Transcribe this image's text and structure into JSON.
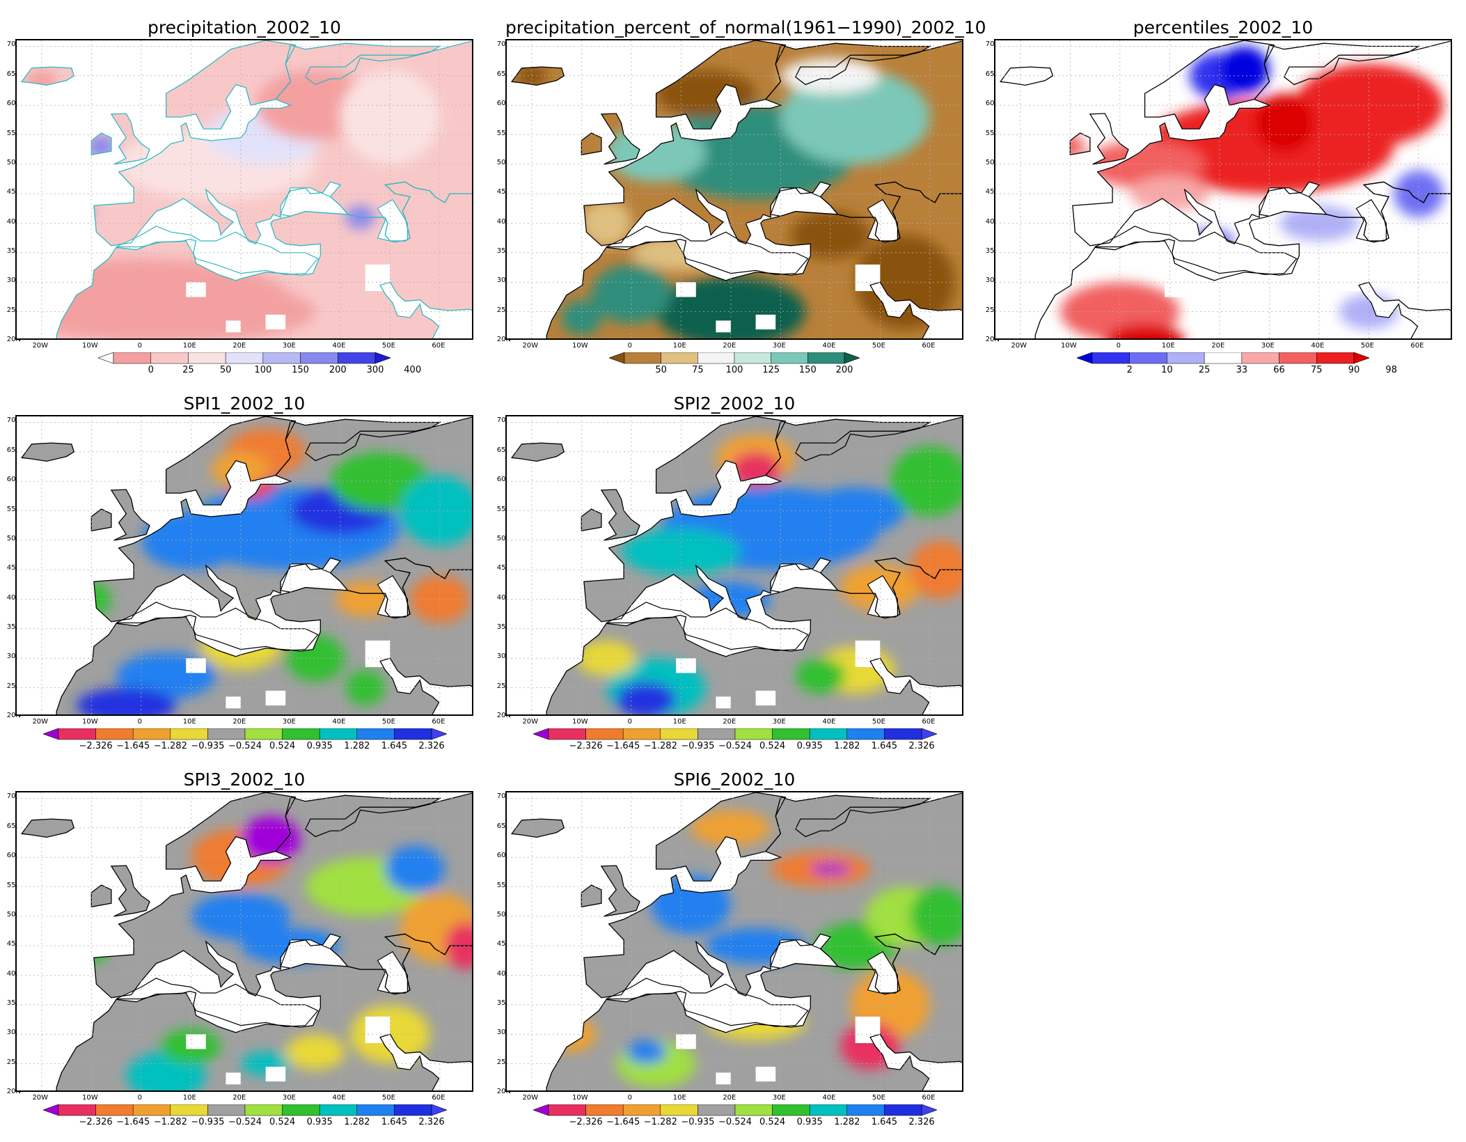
{
  "axes": {
    "lat_labels": [
      "70N",
      "65N",
      "60N",
      "55N",
      "50N",
      "45N",
      "40N",
      "35N",
      "30N",
      "25N",
      "20N"
    ],
    "lon_labels": [
      "20W",
      "10W",
      "0",
      "10E",
      "20E",
      "30E",
      "40E",
      "50E",
      "60E"
    ]
  },
  "panels": [
    {
      "id": "precip",
      "title": "precipitation_2002_10",
      "style": "precip",
      "colorbar": {
        "ticks": [
          "0",
          "25",
          "50",
          "100",
          "150",
          "200",
          "300",
          "400"
        ],
        "colors": [
          "#ffffff",
          "#f4a0a0",
          "#f8c8c8",
          "#fbe2e2",
          "#e2e2fb",
          "#b8b8f4",
          "#8888ee",
          "#4444e6",
          "#1c1cd0"
        ]
      }
    },
    {
      "id": "pct_normal",
      "title": "precipitation_percent_of_normal(1961−1990)_2002_10",
      "style": "pct",
      "colorbar": {
        "ticks": [
          "50",
          "75",
          "100",
          "125",
          "150",
          "200"
        ],
        "colors": [
          "#8a5210",
          "#b9803a",
          "#dfc080",
          "#f4f4f4",
          "#c6e8de",
          "#7cc8b8",
          "#2e8e7c",
          "#11604e"
        ]
      }
    },
    {
      "id": "percentiles",
      "title": "percentiles_2002_10",
      "style": "pctl",
      "colorbar": {
        "ticks": [
          "2",
          "10",
          "25",
          "33",
          "66",
          "75",
          "90",
          "98"
        ],
        "colors": [
          "#0000e0",
          "#3232f0",
          "#6e6ef4",
          "#b0b0f8",
          "#ffffff",
          "#f8a8a8",
          "#f26060",
          "#ec2020",
          "#dc0000"
        ]
      }
    },
    {
      "id": "spi1",
      "title": "SPI1_2002_10",
      "style": "spi",
      "colorbar": {
        "ticks": [
          "−2.326",
          "−1.645",
          "−1.282",
          "−0.935",
          "−0.524",
          "0.524",
          "0.935",
          "1.282",
          "1.645",
          "2.326"
        ],
        "colors": [
          "#a000d8",
          "#e83060",
          "#f07c30",
          "#f0a030",
          "#e8d838",
          "#a0a0a0",
          "#a0e040",
          "#30c030",
          "#00c0c0",
          "#2080f0",
          "#2030e0",
          "#4040f0"
        ]
      }
    },
    {
      "id": "spi2",
      "title": "SPI2_2002_10",
      "style": "spi",
      "colorbar": {
        "ticks": [
          "−2.326",
          "−1.645",
          "−1.282",
          "−0.935",
          "−0.524",
          "0.524",
          "0.935",
          "1.282",
          "1.645",
          "2.326"
        ],
        "colors": [
          "#a000d8",
          "#e83060",
          "#f07c30",
          "#f0a030",
          "#e8d838",
          "#a0a0a0",
          "#a0e040",
          "#30c030",
          "#00c0c0",
          "#2080f0",
          "#2030e0",
          "#4040f0"
        ]
      }
    },
    {
      "id": "spi3",
      "title": "SPI3_2002_10",
      "style": "spi",
      "colorbar": {
        "ticks": [
          "−2.326",
          "−1.645",
          "−1.282",
          "−0.935",
          "−0.524",
          "0.524",
          "0.935",
          "1.282",
          "1.645",
          "2.326"
        ],
        "colors": [
          "#a000d8",
          "#e83060",
          "#f07c30",
          "#f0a030",
          "#e8d838",
          "#a0a0a0",
          "#a0e040",
          "#30c030",
          "#00c0c0",
          "#2080f0",
          "#2030e0",
          "#4040f0"
        ]
      }
    },
    {
      "id": "spi6",
      "title": "SPI6_2002_10",
      "style": "spi",
      "colorbar": {
        "ticks": [
          "−2.326",
          "−1.645",
          "−1.282",
          "−0.935",
          "−0.524",
          "0.524",
          "0.935",
          "1.282",
          "1.645",
          "2.326"
        ],
        "colors": [
          "#a000d8",
          "#e83060",
          "#f07c30",
          "#f0a030",
          "#e8d838",
          "#a0a0a0",
          "#a0e040",
          "#30c030",
          "#00c0c0",
          "#2080f0",
          "#2030e0",
          "#4040f0"
        ]
      }
    }
  ]
}
